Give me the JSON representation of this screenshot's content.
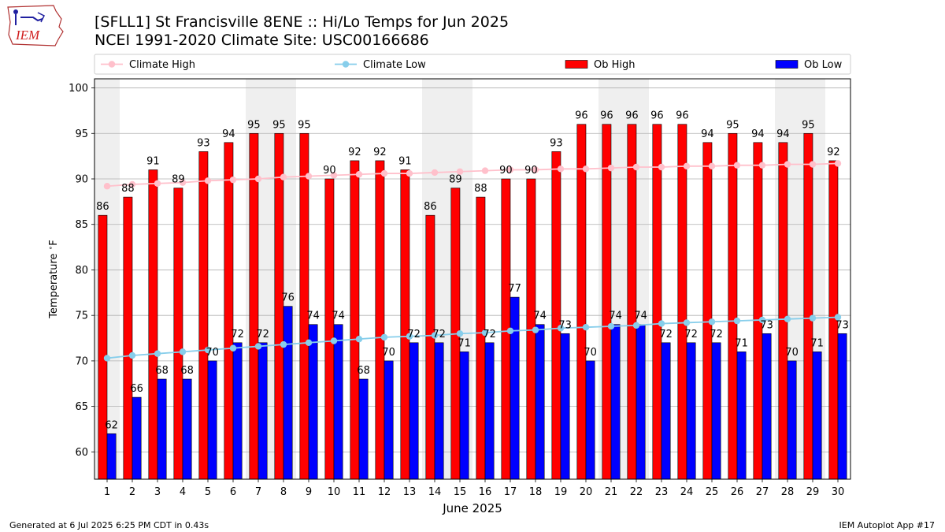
{
  "header": {
    "logo_text": "IEM",
    "title_line1": "[SFLL1] St Francisville 8ENE :: Hi/Lo Temps for Jun 2025",
    "title_line2": "NCEI 1991-2020 Climate Site: USC00166686"
  },
  "footer": {
    "left": "Generated at 6 Jul 2025 6:25 PM CDT in 0.43s",
    "right": "IEM Autoplot App #17"
  },
  "colors": {
    "ob_high": "#ff0000",
    "ob_low": "#0000ff",
    "climate_high": "#ffc0cb",
    "climate_low": "#87ceeb",
    "weekend_shade": "#efefef"
  },
  "chart_data": {
    "type": "bar",
    "xlabel": "June 2025",
    "ylabel": "Temperature $^\\circ$F",
    "ylim": [
      57,
      101
    ],
    "yticks": [
      60,
      65,
      70,
      75,
      80,
      85,
      90,
      95,
      100
    ],
    "categories": [
      1,
      2,
      3,
      4,
      5,
      6,
      7,
      8,
      9,
      10,
      11,
      12,
      13,
      14,
      15,
      16,
      17,
      18,
      19,
      20,
      21,
      22,
      23,
      24,
      25,
      26,
      27,
      28,
      29,
      30
    ],
    "grid": true,
    "legend_placement": "top",
    "shaded_weekend_days": [
      1,
      7,
      8,
      14,
      15,
      21,
      22,
      28,
      29
    ],
    "series": [
      {
        "name": "Ob High",
        "kind": "bar",
        "values": [
          86,
          88,
          91,
          89,
          93,
          94,
          95,
          95,
          95,
          90,
          92,
          92,
          91,
          86,
          89,
          88,
          90,
          90,
          93,
          96,
          96,
          96,
          96,
          96,
          94,
          95,
          94,
          94,
          95,
          92
        ]
      },
      {
        "name": "Ob Low",
        "kind": "bar",
        "values": [
          62,
          66,
          68,
          68,
          70,
          72,
          72,
          76,
          74,
          74,
          68,
          70,
          72,
          72,
          71,
          72,
          77,
          74,
          73,
          70,
          74,
          74,
          72,
          72,
          72,
          71,
          73,
          70,
          71,
          73
        ]
      },
      {
        "name": "Climate High",
        "kind": "line",
        "values": [
          89.2,
          89.4,
          89.5,
          89.6,
          89.8,
          89.9,
          90.0,
          90.2,
          90.3,
          90.4,
          90.5,
          90.6,
          90.6,
          90.7,
          90.8,
          90.9,
          91.0,
          91.0,
          91.1,
          91.1,
          91.2,
          91.3,
          91.3,
          91.4,
          91.4,
          91.5,
          91.5,
          91.6,
          91.6,
          91.7
        ]
      },
      {
        "name": "Climate Low",
        "kind": "line",
        "values": [
          70.3,
          70.6,
          70.8,
          71.0,
          71.2,
          71.4,
          71.6,
          71.8,
          72.0,
          72.2,
          72.4,
          72.6,
          72.7,
          72.8,
          73.0,
          73.1,
          73.3,
          73.4,
          73.6,
          73.7,
          73.8,
          73.9,
          74.1,
          74.2,
          74.3,
          74.4,
          74.5,
          74.6,
          74.7,
          74.8
        ]
      }
    ]
  }
}
